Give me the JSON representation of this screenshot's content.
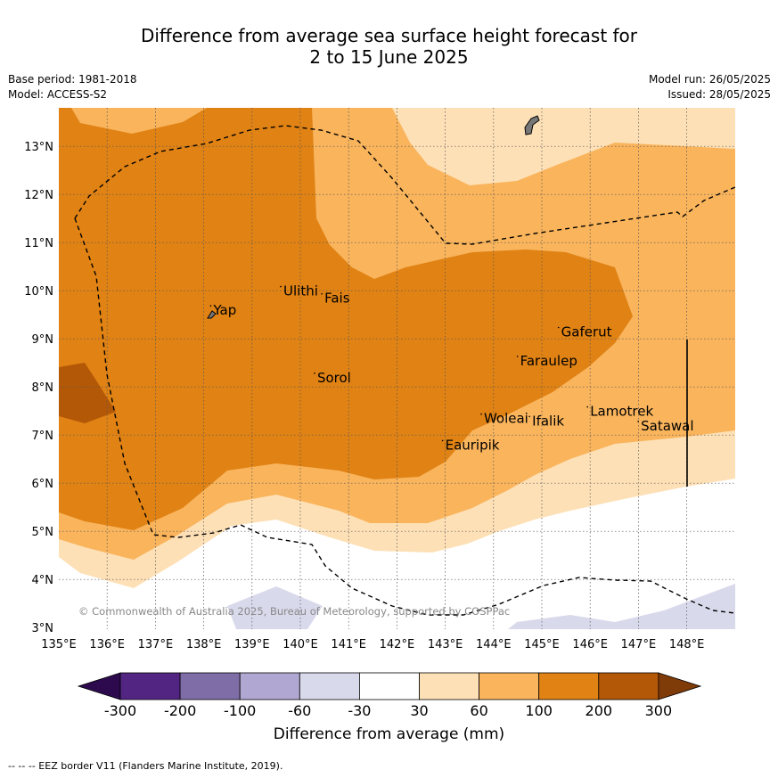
{
  "title": {
    "line1": "Difference from average sea surface height forecast for",
    "line2": "2 to 15 June 2025"
  },
  "meta": {
    "base_period": "Base period: 1981-2018",
    "model": "Model: ACCESS-S2",
    "model_run": "Model run: 26/05/2025",
    "issued": "Issued: 28/05/2025"
  },
  "map": {
    "lon_labels": [
      "135°E",
      "136°E",
      "137°E",
      "138°E",
      "139°E",
      "140°E",
      "141°E",
      "142°E",
      "143°E",
      "144°E",
      "145°E",
      "146°E",
      "147°E",
      "148°E"
    ],
    "lat_labels": [
      "13°N",
      "12°N",
      "11°N",
      "10°N",
      "9°N",
      "8°N",
      "7°N",
      "6°N",
      "5°N",
      "4°N",
      "3°N"
    ],
    "places": [
      {
        "name": "Yap",
        "lon": 138.2,
        "lat": 9.5
      },
      {
        "name": "Ulithi",
        "lon": 139.65,
        "lat": 9.9
      },
      {
        "name": "Fais",
        "lon": 140.5,
        "lat": 9.75
      },
      {
        "name": "Sorol",
        "lon": 140.35,
        "lat": 8.1
      },
      {
        "name": "Gaferut",
        "lon": 145.4,
        "lat": 9.05
      },
      {
        "name": "Faraulep",
        "lon": 144.55,
        "lat": 8.45
      },
      {
        "name": "Woleai",
        "lon": 143.8,
        "lat": 7.25
      },
      {
        "name": "Ifalik",
        "lon": 144.8,
        "lat": 7.2
      },
      {
        "name": "Lamotrek",
        "lon": 146.0,
        "lat": 7.4
      },
      {
        "name": "Satawal",
        "lon": 147.05,
        "lat": 7.1
      },
      {
        "name": "Eauripik",
        "lon": 143.0,
        "lat": 6.7
      }
    ],
    "copyright": "© Commonwealth of Australia 2025, Bureau of Meteorology, supported by COSPPac"
  },
  "colorbar": {
    "title": "Difference from average (mm)",
    "tick_labels": [
      "-300",
      "-200",
      "-100",
      "-60",
      "-30",
      "30",
      "60",
      "100",
      "200",
      "300"
    ],
    "colors": {
      "under": "#2d0a4e",
      "bins": [
        "#532583",
        "#7f6da8",
        "#b0a8d2",
        "#d9d9ec",
        "#ffffff",
        "#fee0b6",
        "#f9b45c",
        "#e08214",
        "#b35806"
      ],
      "over": "#7f3b08"
    }
  },
  "footer": "--  --  -- EEZ border V11 (Flanders Marine Institute, 2019)."
}
